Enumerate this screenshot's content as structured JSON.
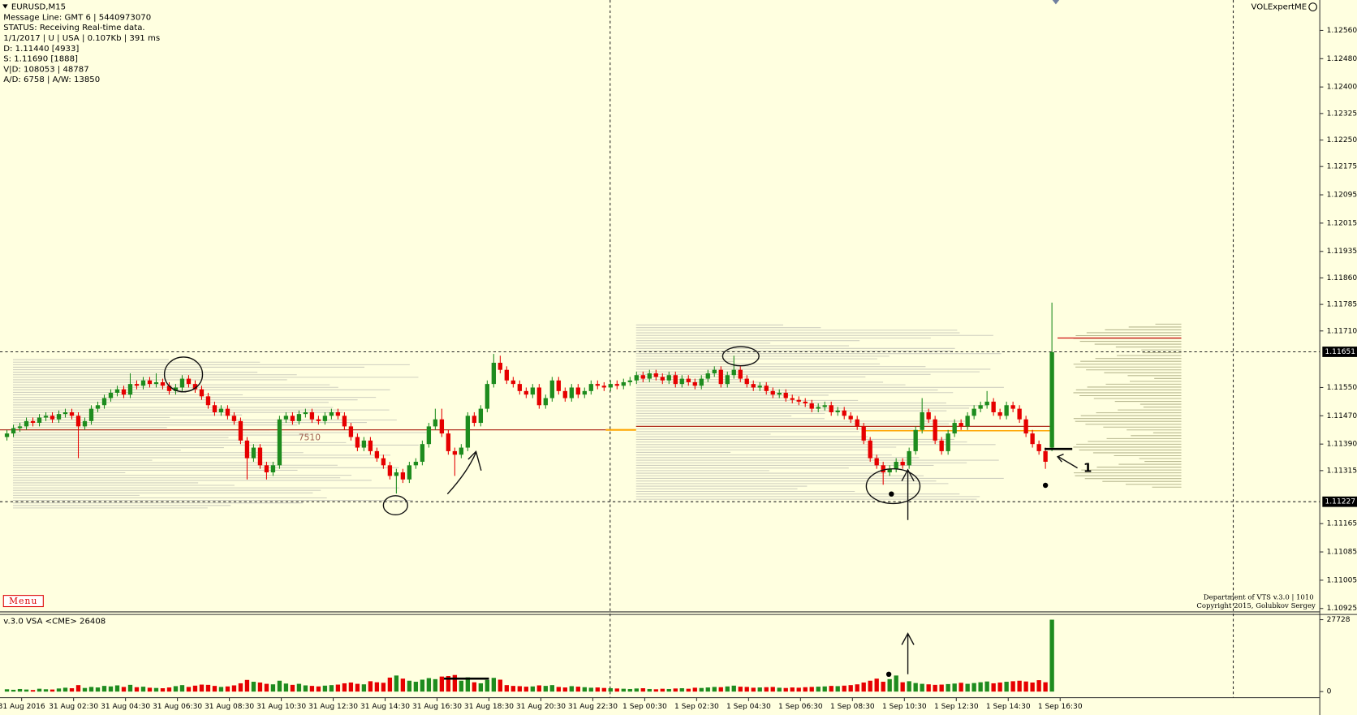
{
  "info": {
    "lines": [
      "EURUSD,M15",
      "Message Line: GMT 6 | 5440973070",
      "STATUS:  Receiving Real-time data.",
      "1/1/2017 | U | USA | 0.107Kb | 391 ms",
      "D: 1.11440  [4933]",
      "S: 1.11690  [1888]",
      "V|D: 108053 | 48787",
      "A/D: 6758 | A/W: 13850"
    ],
    "brand": "VOLExpertME",
    "menu": "Menu",
    "footer": [
      "Department of VTS  v.3.0 | 1010",
      "Copyright 2015, Golubkov Sergey"
    ],
    "volume_title": "v.3.0 VSA <CME> 26408",
    "profile_label": "7510",
    "note": "1"
  },
  "chart_data": {
    "type": "candlestick",
    "up_color": "#1e8c1e",
    "down_color": "#e60000",
    "ylim": [
      1.10913,
      1.12646
    ],
    "yticks": [
      {
        "value": 1.1256,
        "label": "1.12560"
      },
      {
        "value": 1.1248,
        "label": "1.12480"
      },
      {
        "value": 1.124,
        "label": "1.12400"
      },
      1.12325,
      {
        "value": 1.1225,
        "label": "1.12250"
      },
      1.12175,
      1.12095,
      1.12015,
      1.11935,
      {
        "value": 1.1186,
        "label": "1.11860"
      },
      1.11785,
      {
        "value": 1.1171,
        "label": "1.11710"
      },
      {
        "value": 1.1155,
        "label": "1.11550"
      },
      {
        "value": 1.1147,
        "label": "1.11470"
      },
      {
        "value": 1.1139,
        "label": "1.11390"
      },
      1.11315,
      1.11165,
      1.11085,
      1.11005,
      1.10925
    ],
    "price_lines": [
      1.11651,
      1.11227
    ],
    "levels": [
      {
        "value": 1.1144,
        "color": "#b03020"
      },
      {
        "value": 1.1169,
        "color": "#d01010"
      }
    ],
    "time_labels": [
      "31 Aug 2016",
      "31 Aug 02:30",
      "31 Aug 04:30",
      "31 Aug 06:30",
      "31 Aug 08:30",
      "31 Aug 10:30",
      "31 Aug 12:30",
      "31 Aug 14:30",
      "31 Aug 16:30",
      "31 Aug 18:30",
      "31 Aug 20:30",
      "31 Aug 22:30",
      "1 Sep 00:30",
      "1 Sep 02:30",
      "1 Sep 04:30",
      "1 Sep 06:30",
      "1 Sep 08:30",
      "1 Sep 10:30",
      "1 Sep 12:30",
      "1 Sep 14:30",
      "1 Sep 16:30"
    ],
    "candles": [
      [
        1.1141,
        1.1143,
        1.114,
        1.1142
      ],
      [
        1.1142,
        1.11445,
        1.1141,
        1.11435
      ],
      [
        1.11435,
        1.1145,
        1.11425,
        1.1144
      ],
      [
        1.1144,
        1.11465,
        1.1143,
        1.11455
      ],
      [
        1.11455,
        1.11465,
        1.1144,
        1.1145
      ],
      [
        1.1145,
        1.11475,
        1.1144,
        1.11465
      ],
      [
        1.11465,
        1.1148,
        1.11455,
        1.1147
      ],
      [
        1.1147,
        1.1148,
        1.1145,
        1.1146
      ],
      [
        1.1146,
        1.11485,
        1.1145,
        1.11475
      ],
      [
        1.11475,
        1.1149,
        1.11465,
        1.1148
      ],
      [
        1.1148,
        1.1149,
        1.1146,
        1.1147
      ],
      [
        1.1147,
        1.1148,
        1.1135,
        1.1144
      ],
      [
        1.1144,
        1.11465,
        1.1143,
        1.11455
      ],
      [
        1.11455,
        1.115,
        1.11445,
        1.1149
      ],
      [
        1.1149,
        1.1151,
        1.1148,
        1.115
      ],
      [
        1.115,
        1.1153,
        1.1149,
        1.1152
      ],
      [
        1.1152,
        1.11545,
        1.1151,
        1.11535
      ],
      [
        1.11535,
        1.11555,
        1.11525,
        1.11545
      ],
      [
        1.11545,
        1.11555,
        1.1152,
        1.1153
      ],
      [
        1.1153,
        1.1159,
        1.1152,
        1.1156
      ],
      [
        1.1156,
        1.1157,
        1.11545,
        1.11555
      ],
      [
        1.11555,
        1.1158,
        1.11545,
        1.1157
      ],
      [
        1.1157,
        1.1158,
        1.1155,
        1.1156
      ],
      [
        1.1156,
        1.1159,
        1.1155,
        1.11565
      ],
      [
        1.11565,
        1.11575,
        1.11545,
        1.11555
      ],
      [
        1.11555,
        1.11565,
        1.1153,
        1.1154
      ],
      [
        1.1154,
        1.1156,
        1.1153,
        1.1155
      ],
      [
        1.1155,
        1.11585,
        1.1154,
        1.11575
      ],
      [
        1.11575,
        1.11585,
        1.1155,
        1.1156
      ],
      [
        1.1156,
        1.1157,
        1.11535,
        1.11545
      ],
      [
        1.11545,
        1.11555,
        1.11515,
        1.11525
      ],
      [
        1.11525,
        1.11535,
        1.1149,
        1.115
      ],
      [
        1.115,
        1.1151,
        1.1147,
        1.1148
      ],
      [
        1.1148,
        1.115,
        1.1147,
        1.1149
      ],
      [
        1.1149,
        1.115,
        1.1146,
        1.1147
      ],
      [
        1.1147,
        1.1148,
        1.11445,
        1.11455
      ],
      [
        1.11455,
        1.11465,
        1.1139,
        1.114
      ],
      [
        1.114,
        1.1141,
        1.1129,
        1.1135
      ],
      [
        1.1135,
        1.1139,
        1.1134,
        1.1138
      ],
      [
        1.1138,
        1.1139,
        1.1132,
        1.1133
      ],
      [
        1.1133,
        1.1134,
        1.1129,
        1.1131
      ],
      [
        1.1131,
        1.1134,
        1.113,
        1.1133
      ],
      [
        1.1133,
        1.1147,
        1.1132,
        1.1146
      ],
      [
        1.1146,
        1.1148,
        1.1145,
        1.1147
      ],
      [
        1.1147,
        1.1148,
        1.11445,
        1.11455
      ],
      [
        1.11455,
        1.11485,
        1.11445,
        1.11475
      ],
      [
        1.11475,
        1.1149,
        1.11465,
        1.1148
      ],
      [
        1.1148,
        1.1149,
        1.1145,
        1.1146
      ],
      [
        1.1146,
        1.1147,
        1.11445,
        1.11455
      ],
      [
        1.11455,
        1.1148,
        1.11445,
        1.1147
      ],
      [
        1.1147,
        1.1149,
        1.1146,
        1.1148
      ],
      [
        1.1148,
        1.1149,
        1.1146,
        1.1147
      ],
      [
        1.1147,
        1.1148,
        1.1143,
        1.1144
      ],
      [
        1.1144,
        1.1145,
        1.114,
        1.1141
      ],
      [
        1.1141,
        1.1142,
        1.1137,
        1.1138
      ],
      [
        1.1138,
        1.1141,
        1.1137,
        1.114
      ],
      [
        1.114,
        1.1141,
        1.1136,
        1.1137
      ],
      [
        1.1137,
        1.1138,
        1.1134,
        1.1135
      ],
      [
        1.1135,
        1.1136,
        1.1132,
        1.1133
      ],
      [
        1.1133,
        1.1134,
        1.1129,
        1.113
      ],
      [
        1.113,
        1.1132,
        1.1125,
        1.1131
      ],
      [
        1.1131,
        1.1132,
        1.1128,
        1.1129
      ],
      [
        1.1129,
        1.1134,
        1.1128,
        1.1133
      ],
      [
        1.1133,
        1.1135,
        1.1132,
        1.1134
      ],
      [
        1.1134,
        1.114,
        1.1133,
        1.1139
      ],
      [
        1.1139,
        1.1145,
        1.1138,
        1.1144
      ],
      [
        1.1144,
        1.1149,
        1.1143,
        1.1146
      ],
      [
        1.1146,
        1.1149,
        1.1141,
        1.1142
      ],
      [
        1.1142,
        1.1143,
        1.1136,
        1.1137
      ],
      [
        1.1137,
        1.1138,
        1.113,
        1.1136
      ],
      [
        1.1136,
        1.1139,
        1.1135,
        1.1138
      ],
      [
        1.1138,
        1.1148,
        1.1137,
        1.1147
      ],
      [
        1.1147,
        1.1148,
        1.1144,
        1.1145
      ],
      [
        1.1145,
        1.115,
        1.1144,
        1.1149
      ],
      [
        1.1149,
        1.1157,
        1.1148,
        1.1156
      ],
      [
        1.1156,
        1.11645,
        1.1155,
        1.1162
      ],
      [
        1.1162,
        1.1164,
        1.1159,
        1.116
      ],
      [
        1.116,
        1.1161,
        1.1156,
        1.1157
      ],
      [
        1.1157,
        1.1158,
        1.1155,
        1.1156
      ],
      [
        1.1156,
        1.1157,
        1.1153,
        1.1154
      ],
      [
        1.1154,
        1.1155,
        1.1152,
        1.1153
      ],
      [
        1.1153,
        1.1156,
        1.1152,
        1.1155
      ],
      [
        1.1155,
        1.1156,
        1.1149,
        1.115
      ],
      [
        1.115,
        1.1153,
        1.1149,
        1.1152
      ],
      [
        1.1152,
        1.1158,
        1.1151,
        1.1157
      ],
      [
        1.1157,
        1.1158,
        1.1153,
        1.1154
      ],
      [
        1.1154,
        1.1155,
        1.1151,
        1.1152
      ],
      [
        1.1152,
        1.1156,
        1.1151,
        1.1155
      ],
      [
        1.1155,
        1.1156,
        1.1152,
        1.1153
      ],
      [
        1.1153,
        1.1155,
        1.1152,
        1.1154
      ],
      [
        1.1154,
        1.1157,
        1.1153,
        1.1156
      ],
      [
        1.1156,
        1.1157,
        1.11545,
        1.11555
      ],
      [
        1.11555,
        1.11565,
        1.1154,
        1.1155
      ],
      [
        1.1155,
        1.1157,
        1.1154,
        1.1156
      ],
      [
        1.1156,
        1.1157,
        1.11545,
        1.11555
      ],
      [
        1.11555,
        1.11575,
        1.11545,
        1.11565
      ],
      [
        1.11565,
        1.1158,
        1.11555,
        1.1157
      ],
      [
        1.1157,
        1.11595,
        1.1156,
        1.11585
      ],
      [
        1.11585,
        1.11595,
        1.11565,
        1.11575
      ],
      [
        1.11575,
        1.116,
        1.11565,
        1.1159
      ],
      [
        1.1159,
        1.116,
        1.1157,
        1.1158
      ],
      [
        1.1158,
        1.1159,
        1.1156,
        1.1157
      ],
      [
        1.1157,
        1.11595,
        1.1156,
        1.11585
      ],
      [
        1.11585,
        1.11595,
        1.1155,
        1.1156
      ],
      [
        1.1156,
        1.11585,
        1.1155,
        1.11575
      ],
      [
        1.11575,
        1.11585,
        1.11555,
        1.11565
      ],
      [
        1.11565,
        1.11575,
        1.11545,
        1.11555
      ],
      [
        1.11555,
        1.11585,
        1.11545,
        1.11575
      ],
      [
        1.11575,
        1.116,
        1.11565,
        1.1159
      ],
      [
        1.1159,
        1.1161,
        1.1158,
        1.116
      ],
      [
        1.116,
        1.1161,
        1.1155,
        1.1156
      ],
      [
        1.1156,
        1.11595,
        1.1155,
        1.11585
      ],
      [
        1.11585,
        1.1164,
        1.11575,
        1.116
      ],
      [
        1.116,
        1.1161,
        1.11565,
        1.11575
      ],
      [
        1.11575,
        1.11585,
        1.1155,
        1.1156
      ],
      [
        1.1156,
        1.1157,
        1.1154,
        1.1155
      ],
      [
        1.1155,
        1.11565,
        1.1154,
        1.11555
      ],
      [
        1.11555,
        1.11565,
        1.1153,
        1.1154
      ],
      [
        1.1154,
        1.1155,
        1.1152,
        1.1153
      ],
      [
        1.1153,
        1.11545,
        1.1152,
        1.11535
      ],
      [
        1.11535,
        1.11545,
        1.1151,
        1.1152
      ],
      [
        1.1152,
        1.1153,
        1.11505,
        1.11515
      ],
      [
        1.11515,
        1.11525,
        1.115,
        1.1151
      ],
      [
        1.1151,
        1.1152,
        1.11495,
        1.11505
      ],
      [
        1.11505,
        1.11515,
        1.1148,
        1.1149
      ],
      [
        1.1149,
        1.11505,
        1.1148,
        1.11495
      ],
      [
        1.11495,
        1.1151,
        1.11485,
        1.115
      ],
      [
        1.115,
        1.1151,
        1.1147,
        1.1148
      ],
      [
        1.1148,
        1.11495,
        1.1147,
        1.11485
      ],
      [
        1.11485,
        1.11495,
        1.1146,
        1.1147
      ],
      [
        1.1147,
        1.1148,
        1.1145,
        1.1146
      ],
      [
        1.1146,
        1.1147,
        1.1143,
        1.1144
      ],
      [
        1.1144,
        1.1145,
        1.1139,
        1.114
      ],
      [
        1.114,
        1.1141,
        1.1134,
        1.1135
      ],
      [
        1.1135,
        1.1136,
        1.1132,
        1.1133
      ],
      [
        1.1133,
        1.1134,
        1.11275,
        1.1131
      ],
      [
        1.1131,
        1.1133,
        1.113,
        1.1132
      ],
      [
        1.1132,
        1.1135,
        1.1131,
        1.1134
      ],
      [
        1.1134,
        1.1135,
        1.1132,
        1.1133
      ],
      [
        1.1133,
        1.1138,
        1.1132,
        1.1137
      ],
      [
        1.1137,
        1.1144,
        1.1136,
        1.1143
      ],
      [
        1.1143,
        1.1152,
        1.1142,
        1.1148
      ],
      [
        1.1148,
        1.1149,
        1.1145,
        1.1146
      ],
      [
        1.1146,
        1.1147,
        1.1139,
        1.114
      ],
      [
        1.114,
        1.1141,
        1.1136,
        1.1137
      ],
      [
        1.1137,
        1.1143,
        1.1136,
        1.1142
      ],
      [
        1.1142,
        1.1146,
        1.1141,
        1.1145
      ],
      [
        1.1145,
        1.1146,
        1.1143,
        1.1144
      ],
      [
        1.1144,
        1.1148,
        1.1143,
        1.1147
      ],
      [
        1.1147,
        1.115,
        1.1146,
        1.1149
      ],
      [
        1.1149,
        1.1151,
        1.1148,
        1.115
      ],
      [
        1.115,
        1.1154,
        1.1149,
        1.1151
      ],
      [
        1.1151,
        1.1152,
        1.1147,
        1.1148
      ],
      [
        1.1148,
        1.1149,
        1.1146,
        1.1147
      ],
      [
        1.1147,
        1.1151,
        1.1146,
        1.115
      ],
      [
        1.115,
        1.1151,
        1.1148,
        1.1149
      ],
      [
        1.1149,
        1.115,
        1.1145,
        1.1146
      ],
      [
        1.1146,
        1.1147,
        1.1141,
        1.1142
      ],
      [
        1.1142,
        1.1143,
        1.1138,
        1.1139
      ],
      [
        1.1139,
        1.114,
        1.1136,
        1.1137
      ],
      [
        1.1137,
        1.1138,
        1.1132,
        1.1134
      ],
      [
        1.1138,
        1.1179,
        1.1137,
        1.1165
      ]
    ],
    "volume": {
      "ylim": [
        0,
        29400
      ],
      "yticks": [
        0,
        27728
      ],
      "values": [
        900,
        700,
        1000,
        800,
        600,
        1100,
        900,
        800,
        1200,
        1500,
        1300,
        2500,
        1400,
        1800,
        1600,
        2200,
        2000,
        2400,
        1800,
        2600,
        1700,
        1900,
        1500,
        1400,
        1300,
        1600,
        2100,
        2500,
        1800,
        2300,
        2700,
        2600,
        2200,
        1800,
        2000,
        2400,
        3200,
        4500,
        3800,
        3500,
        3000,
        2800,
        4200,
        3100,
        2600,
        3000,
        2400,
        2200,
        2000,
        2300,
        2500,
        2700,
        3200,
        3500,
        3000,
        2800,
        4000,
        3600,
        3400,
        5400,
        6200,
        5000,
        4200,
        3800,
        4600,
        5200,
        4800,
        5800,
        6000,
        6400,
        4200,
        5500,
        3600,
        3200,
        4500,
        5300,
        4600,
        2500,
        2200,
        2100,
        1900,
        2000,
        2400,
        2200,
        2500,
        1800,
        1600,
        2100,
        1900,
        1700,
        1500,
        1600,
        1400,
        1300,
        1200,
        1100,
        1000,
        1200,
        1300,
        1000,
        900,
        1100,
        1000,
        1200,
        1300,
        1100,
        1500,
        1400,
        1600,
        1800,
        1700,
        2000,
        2300,
        1900,
        1800,
        1500,
        1600,
        1700,
        1800,
        1500,
        1400,
        1600,
        1500,
        1700,
        1800,
        1900,
        2000,
        2200,
        2100,
        2300,
        2500,
        2800,
        3500,
        4200,
        5000,
        3800,
        4800,
        6200,
        3600,
        4000,
        3300,
        3000,
        2800,
        2600,
        2700,
        2900,
        3100,
        3400,
        3000,
        3300,
        3600,
        3900,
        3200,
        3500,
        3800,
        4000,
        4200,
        3900,
        3500,
        4400,
        3600,
        27728
      ]
    }
  }
}
